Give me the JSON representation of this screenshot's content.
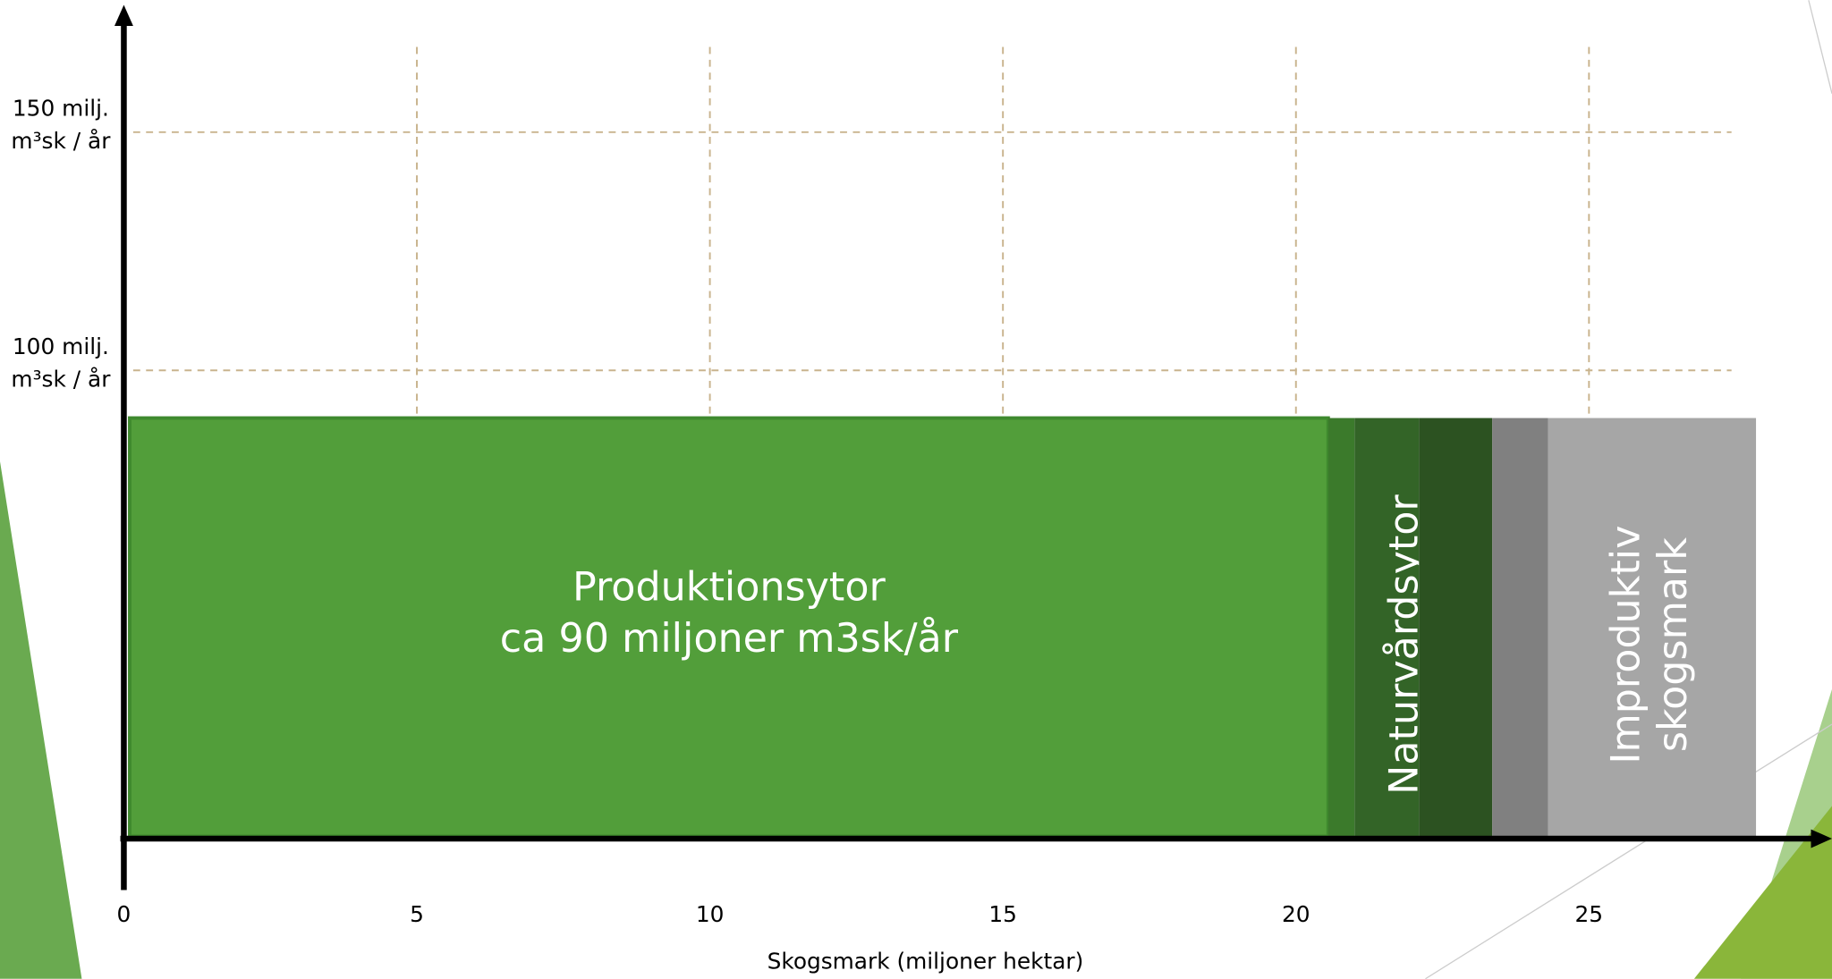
{
  "chart_data": {
    "type": "variable-width-bar",
    "x_label": "Skogsmark (miljoner hektar)",
    "xlim": [
      0,
      27.8
    ],
    "xticks": [
      0,
      5,
      10,
      15,
      20,
      25
    ],
    "ylim": [
      0,
      176
    ],
    "yticks": [
      {
        "value": 100,
        "label": "100 milj. m³sk / år"
      },
      {
        "value": 150,
        "label": "150 milj. m³sk / år"
      }
    ],
    "grid": true,
    "segments": [
      {
        "x": [
          0.1,
          20.55
        ],
        "value": 90,
        "color": "#529e3a",
        "label": [
          "Produktionsytor",
          "ca 90 miljoner m3sk/år"
        ]
      },
      {
        "x": [
          20.55,
          21.0
        ],
        "value": 90,
        "color": "#3b7a2b"
      },
      {
        "x": [
          21.0,
          22.1
        ],
        "value": 90,
        "color": "#336427",
        "vertical_label": [
          "Naturvårdsytor"
        ]
      },
      {
        "x": [
          22.1,
          23.35
        ],
        "value": 90,
        "color": "#2c5221"
      },
      {
        "x": [
          23.35,
          24.3
        ],
        "value": 90,
        "color": "#808080"
      },
      {
        "x": [
          24.3,
          27.85
        ],
        "value": 90,
        "color": "#a6a6a6",
        "vertical_label": [
          "Improduktiv",
          "skogsmark"
        ]
      }
    ]
  }
}
